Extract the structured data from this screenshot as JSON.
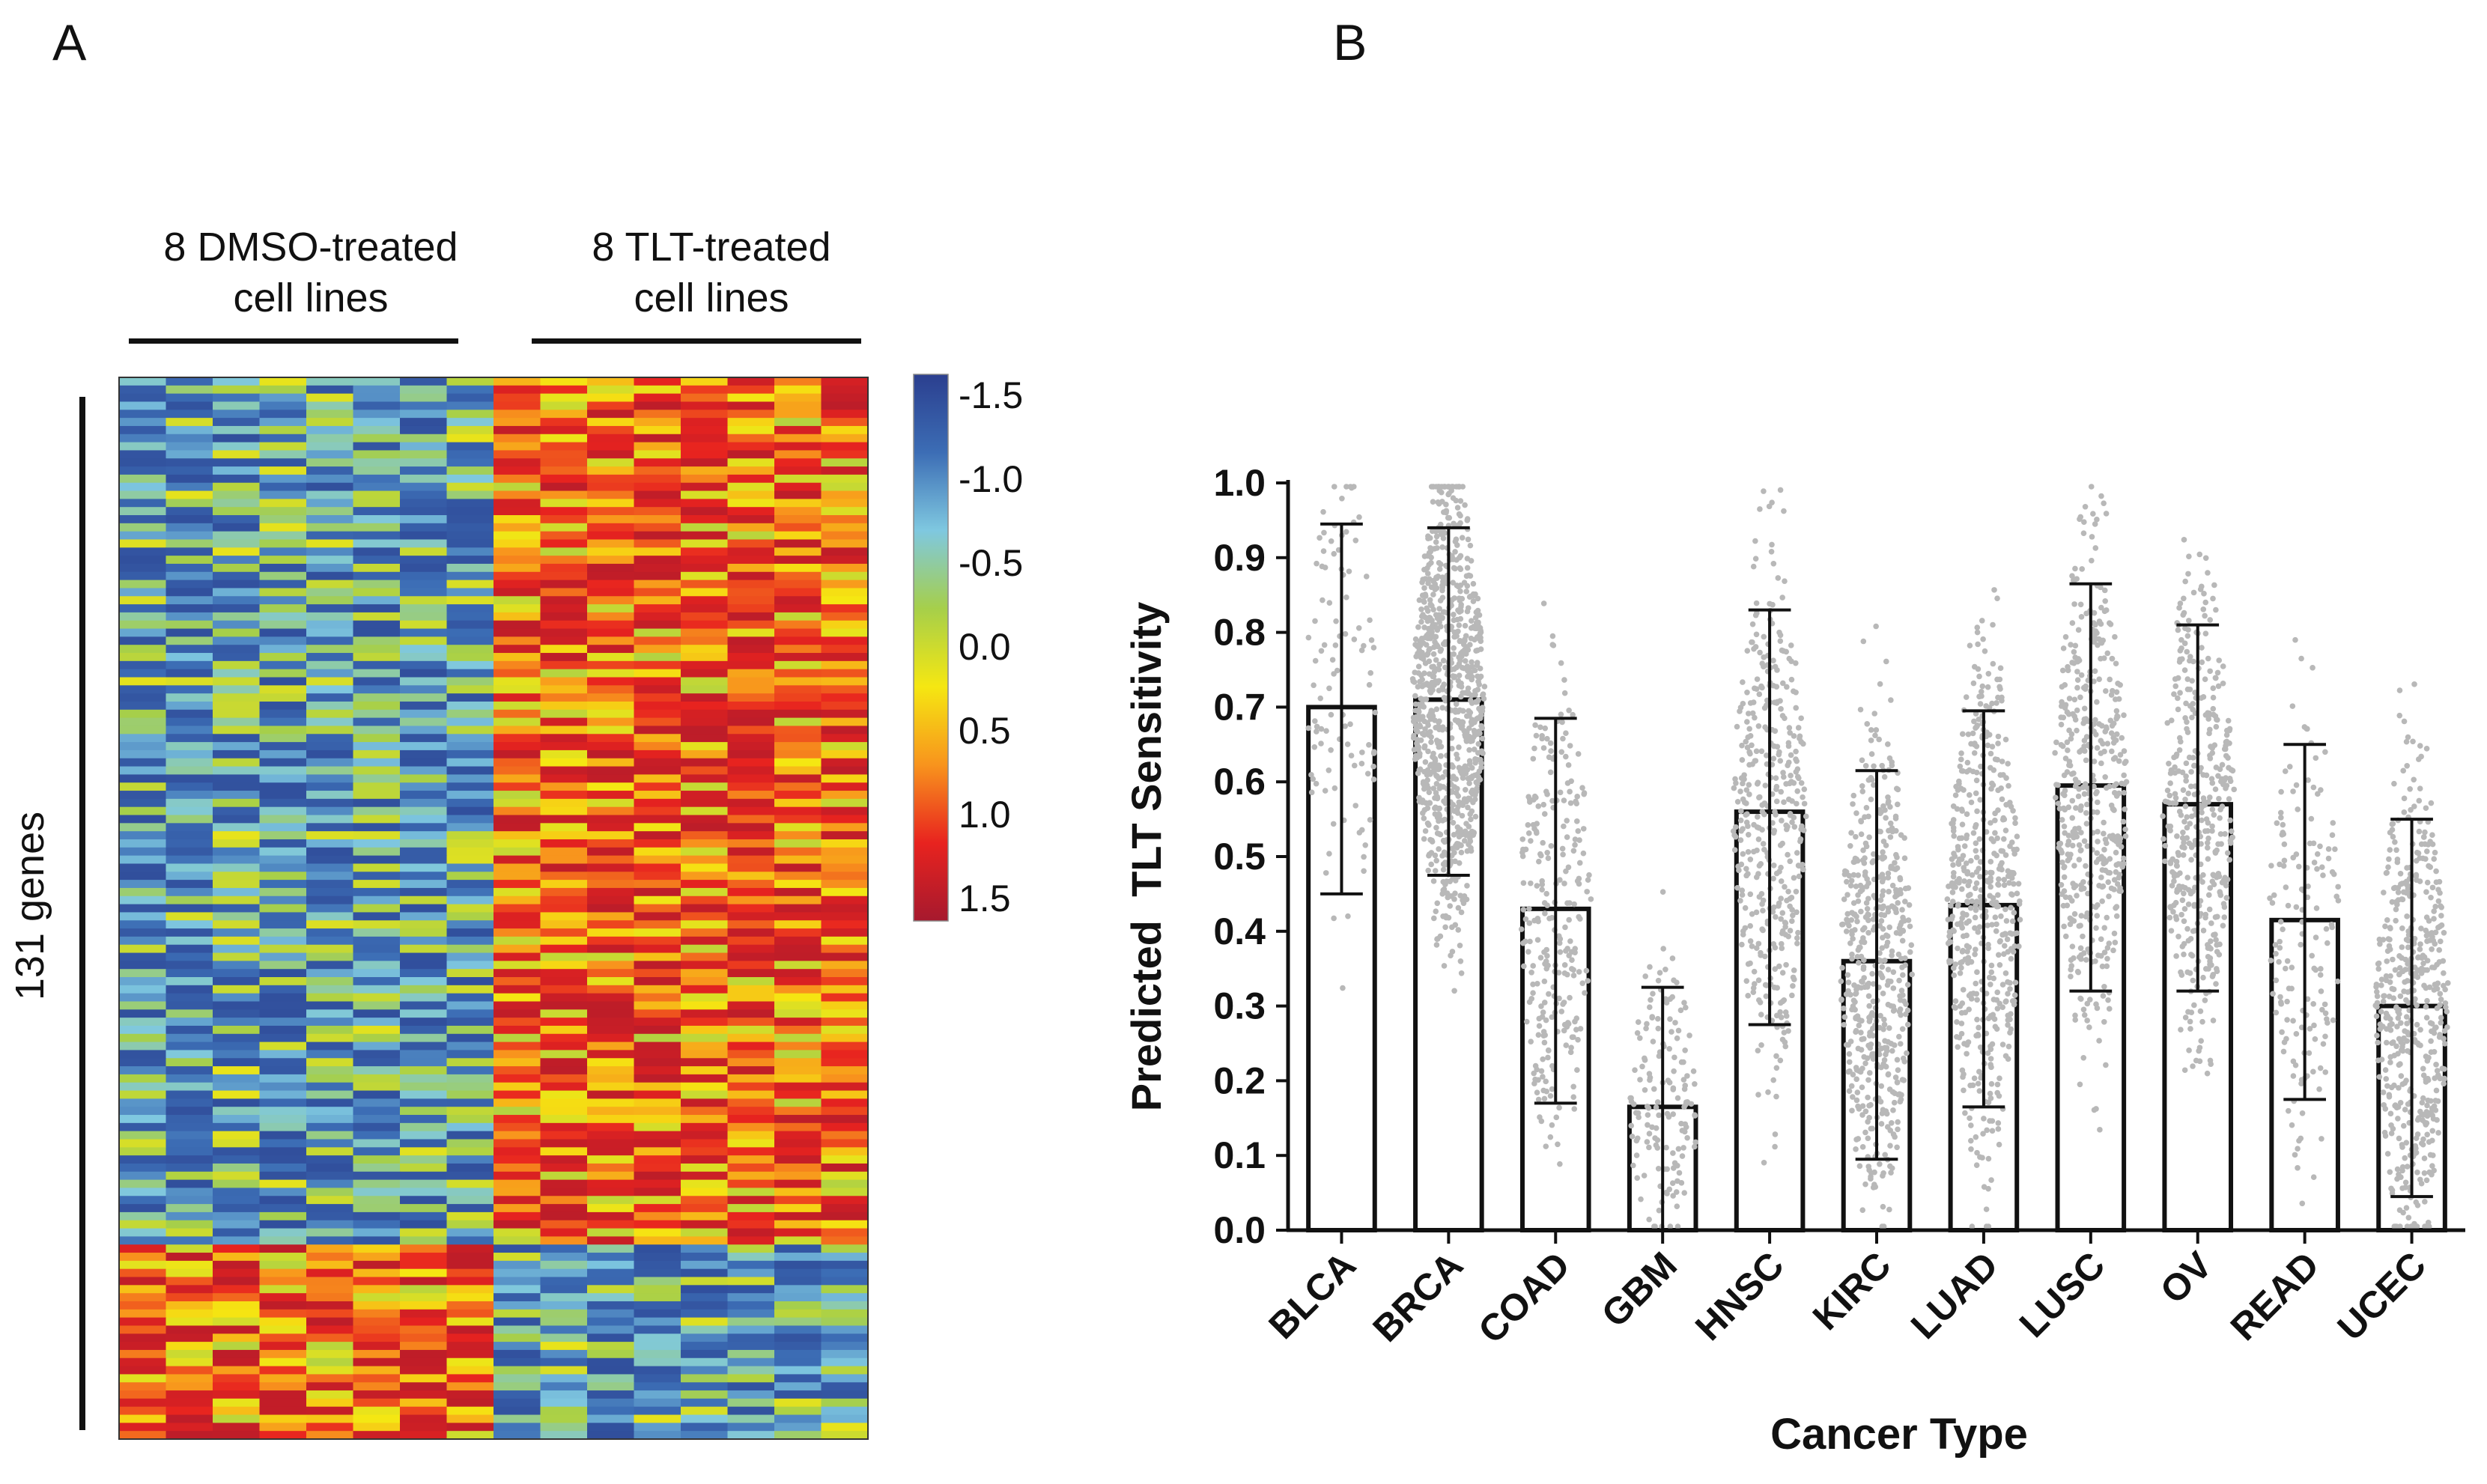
{
  "panel_labels": {
    "a": "A",
    "b": "B"
  },
  "heatmap": {
    "group_labels": [
      {
        "line1": "8 DMSO-treated",
        "line2": "cell lines"
      },
      {
        "line1": "8 TLT-treated",
        "line2": "cell lines"
      }
    ],
    "row_label": "131 genes",
    "n_genes": 131,
    "n_columns": 16,
    "colorbar": {
      "ticks": [
        "-1.5",
        "-1.0",
        "-0.5",
        "0.0",
        "0.5",
        "1.0",
        "1.5"
      ],
      "stops": [
        "#2b3f8f",
        "#3c6db5",
        "#7fc8e0",
        "#a6cf4a",
        "#f5e712",
        "#f8941d",
        "#e8231f",
        "#a6192e"
      ]
    }
  },
  "chart_data": {
    "type": "bar",
    "title": "",
    "xlabel": "Cancer Type",
    "ylabel": "Predicted  TLT Sensitivity",
    "ylim": [
      0.0,
      1.0
    ],
    "yticks": [
      "0.0",
      "0.1",
      "0.2",
      "0.3",
      "0.4",
      "0.5",
      "0.6",
      "0.7",
      "0.8",
      "0.9",
      "1.0"
    ],
    "categories": [
      "BLCA",
      "BRCA",
      "COAD",
      "GBM",
      "HNSC",
      "KIRC",
      "LUAD",
      "LUSC",
      "OV",
      "READ",
      "UCEC"
    ],
    "values": [
      0.7,
      0.71,
      0.43,
      0.165,
      0.56,
      0.36,
      0.435,
      0.595,
      0.57,
      0.415,
      0.3
    ],
    "error_low": [
      0.45,
      0.475,
      0.17,
      0.0,
      0.275,
      0.095,
      0.165,
      0.32,
      0.32,
      0.175,
      0.045
    ],
    "error_high": [
      0.945,
      0.94,
      0.685,
      0.325,
      0.83,
      0.615,
      0.695,
      0.865,
      0.81,
      0.65,
      0.55
    ],
    "point_counts": [
      100,
      900,
      260,
      150,
      400,
      500,
      500,
      450,
      420,
      150,
      500
    ],
    "colors": {
      "bar_fill": "#ffffff",
      "bar_edge": "#111111",
      "points": "#b8b8b8"
    }
  }
}
